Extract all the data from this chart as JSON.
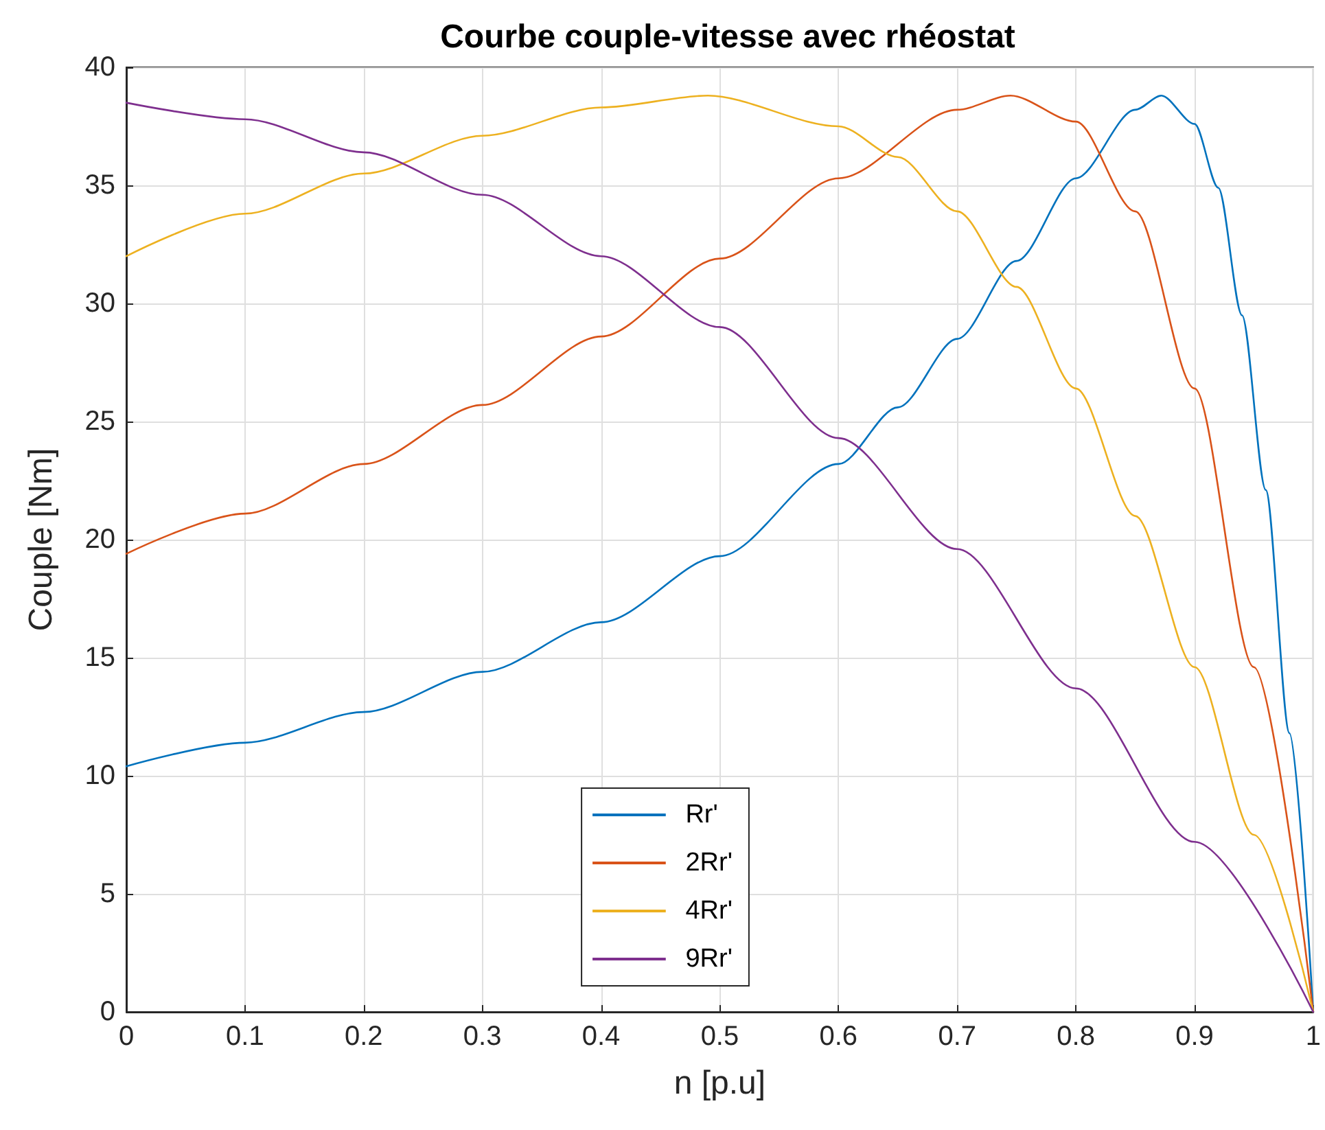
{
  "chart_data": {
    "type": "line",
    "title": "Courbe couple-vitesse avec rhéostat",
    "xlabel": "n [p.u]",
    "ylabel": "Couple [Nm]",
    "xlim": [
      0,
      1
    ],
    "xticks": [
      0,
      0.1,
      0.2,
      0.3,
      0.4,
      0.5,
      0.6,
      0.7,
      0.8,
      0.9,
      1
    ],
    "ylim": [
      0,
      40
    ],
    "yticks": [
      0,
      5,
      10,
      15,
      20,
      25,
      30,
      35,
      40
    ],
    "grid": true,
    "legend": "bottom",
    "marker": "none",
    "line_style": "solid",
    "series": [
      {
        "name": "Rr'",
        "color": "#0072bd",
        "x": [
          0,
          0.1,
          0.2,
          0.3,
          0.4,
          0.5,
          0.6,
          0.65,
          0.7,
          0.75,
          0.8,
          0.85,
          0.872,
          0.9,
          0.92,
          0.94,
          0.96,
          0.98,
          1
        ],
        "values": [
          10.4,
          11.4,
          12.7,
          14.4,
          16.5,
          19.3,
          23.2,
          25.6,
          28.5,
          31.8,
          35.3,
          38.2,
          38.8,
          37.6,
          34.9,
          29.5,
          22.1,
          11.8,
          0
        ]
      },
      {
        "name": "2Rr'",
        "color": "#d95319",
        "x": [
          0,
          0.1,
          0.2,
          0.3,
          0.4,
          0.5,
          0.6,
          0.7,
          0.745,
          0.8,
          0.85,
          0.9,
          0.95,
          1
        ],
        "values": [
          19.4,
          21.1,
          23.2,
          25.7,
          28.6,
          31.9,
          35.3,
          38.2,
          38.8,
          37.7,
          33.9,
          26.4,
          14.6,
          0
        ]
      },
      {
        "name": "4Rr'",
        "color": "#edb120",
        "x": [
          0,
          0.1,
          0.2,
          0.3,
          0.4,
          0.49,
          0.6,
          0.65,
          0.7,
          0.75,
          0.8,
          0.85,
          0.9,
          0.95,
          1
        ],
        "values": [
          32,
          33.8,
          35.5,
          37.1,
          38.3,
          38.8,
          37.5,
          36.2,
          33.9,
          30.7,
          26.4,
          21,
          14.6,
          7.5,
          0
        ]
      },
      {
        "name": "9Rr'",
        "color": "#7e2f8e",
        "x": [
          0,
          0.1,
          0.2,
          0.3,
          0.4,
          0.5,
          0.6,
          0.7,
          0.8,
          0.9,
          1
        ],
        "values": [
          38.5,
          37.8,
          36.4,
          34.6,
          32,
          29,
          24.3,
          19.6,
          13.7,
          7.2,
          0
        ]
      }
    ]
  }
}
